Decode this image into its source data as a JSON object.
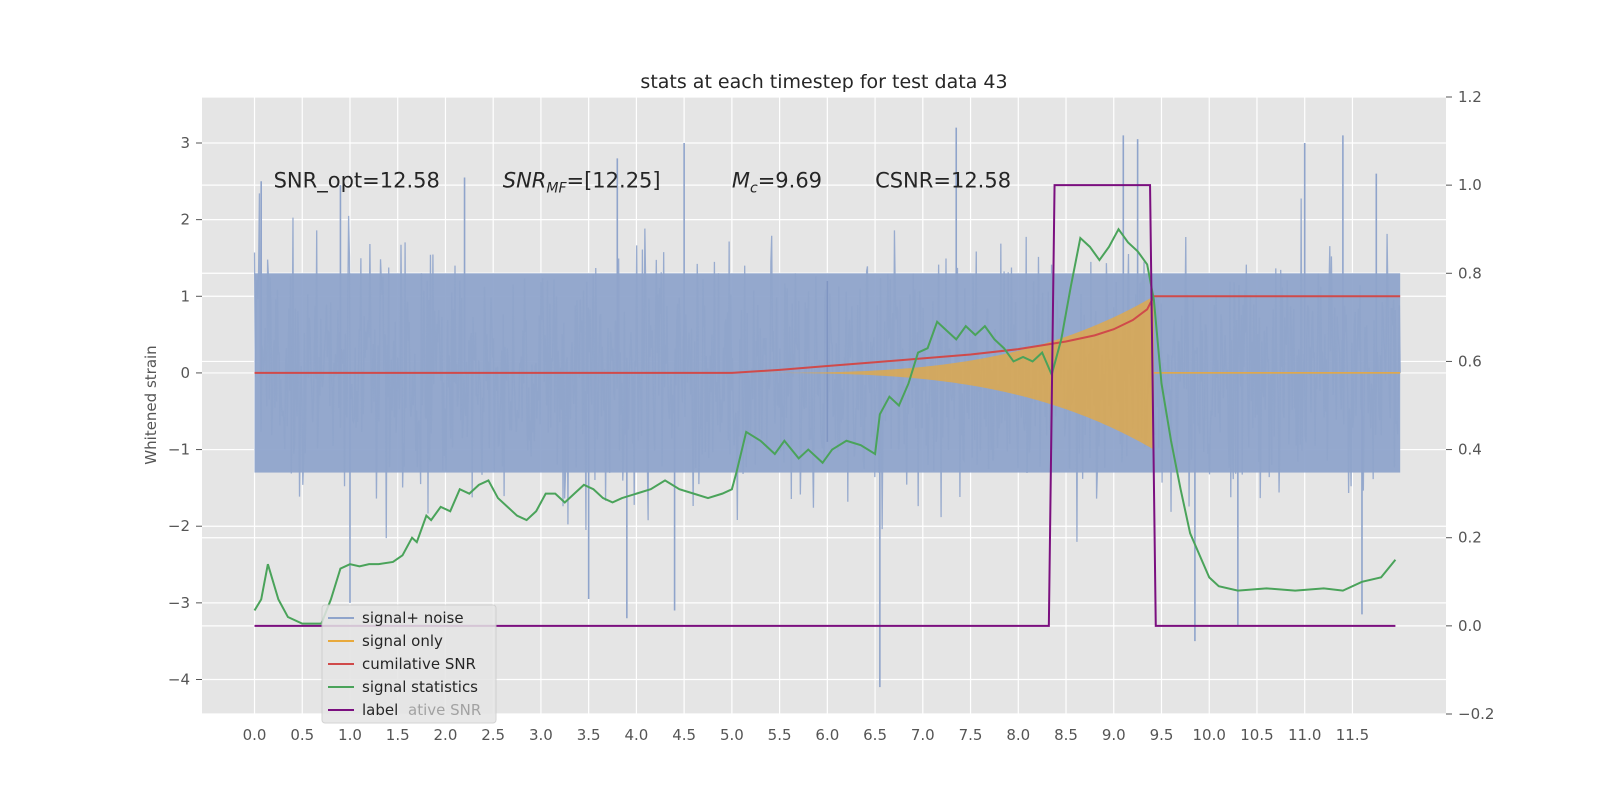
{
  "chart_data": {
    "type": "line",
    "title": "stats at each timestep for test data 43",
    "xlabel": "",
    "ylabel": "Whitened strain",
    "y2label": "",
    "xlim": [
      -0.55,
      12.48
    ],
    "ylim": [
      -4.45,
      3.6
    ],
    "y2lim": [
      -0.2,
      1.2
    ],
    "x_ticks": [
      0.0,
      0.5,
      1.0,
      1.5,
      2.0,
      2.5,
      3.0,
      3.5,
      4.0,
      4.5,
      5.0,
      5.5,
      6.0,
      6.5,
      7.0,
      7.5,
      8.0,
      8.5,
      9.0,
      9.5,
      10.0,
      10.5,
      11.0,
      11.5
    ],
    "x_tick_labels": [
      "0.0",
      "0.5",
      "1.0",
      "1.5",
      "2.0",
      "2.5",
      "3.0",
      "3.5",
      "4.0",
      "4.5",
      "5.0",
      "5.5",
      "6.0",
      "6.5",
      "7.0",
      "7.5",
      "8.0",
      "8.5",
      "9.0",
      "9.5",
      "10.0",
      "10.5",
      "11.0",
      "11.5"
    ],
    "y_ticks": [
      3,
      2,
      1,
      0,
      -1,
      -2,
      -3,
      -4
    ],
    "y_tick_labels": [
      "3",
      "2",
      "1",
      "0",
      "−1",
      "−2",
      "−3",
      "−4"
    ],
    "y2_ticks": [
      1.2,
      1.0,
      0.8,
      0.6,
      0.4,
      0.2,
      0.0,
      -0.2
    ],
    "y2_tick_labels": [
      "1.2",
      "1.0",
      "0.8",
      "0.6",
      "0.4",
      "0.2",
      "0.0",
      "−0.2"
    ],
    "grid": true,
    "legend_position": "lower-left",
    "annotations": [
      {
        "text": "SNR_opt=12.58",
        "x": 0.2,
        "y": 2.55,
        "italic": false
      },
      {
        "text": "SNR",
        "sub": "MF",
        "rest": "=[12.25]",
        "x": 2.6,
        "y": 2.55,
        "italic": true
      },
      {
        "text": "M",
        "sub": "c",
        "rest": "=9.69",
        "x": 5.0,
        "y": 2.55,
        "italic": true
      },
      {
        "text": "CSNR=12.58",
        "x": 6.5,
        "y": 2.55,
        "italic": false
      }
    ],
    "series": [
      {
        "name": "signal+ noise",
        "color": "#8fa4cb",
        "axis": "left",
        "style": "noise",
        "x_range": [
          0.0,
          12.0
        ],
        "band_top": 1.3,
        "band_bottom": -1.3,
        "max": 3.2,
        "min": -4.1
      },
      {
        "name": "signal only",
        "color": "#e8a93c",
        "axis": "left",
        "style": "chirp",
        "x_range": [
          5.0,
          12.0
        ],
        "merger": 9.42,
        "peak_amplitude": 1.0
      },
      {
        "name": "cumilative SNR",
        "color": "#d04a4a",
        "axis": "left",
        "x": [
          0.0,
          5.0,
          5.5,
          6.0,
          6.5,
          7.0,
          7.5,
          8.0,
          8.5,
          8.8,
          9.0,
          9.2,
          9.35,
          9.42,
          12.0
        ],
        "values": [
          0.0,
          0.0,
          0.04,
          0.09,
          0.14,
          0.19,
          0.24,
          0.31,
          0.41,
          0.49,
          0.57,
          0.69,
          0.83,
          1.0,
          1.0
        ]
      },
      {
        "name": "signal statistics",
        "color": "#4aa35a",
        "axis": "right",
        "x": [
          0.0,
          0.07,
          0.14,
          0.25,
          0.35,
          0.5,
          0.7,
          0.8,
          0.9,
          1.0,
          1.1,
          1.2,
          1.3,
          1.45,
          1.55,
          1.65,
          1.7,
          1.8,
          1.85,
          1.95,
          2.05,
          2.15,
          2.25,
          2.35,
          2.45,
          2.55,
          2.65,
          2.75,
          2.85,
          2.95,
          3.05,
          3.15,
          3.25,
          3.35,
          3.45,
          3.55,
          3.65,
          3.75,
          3.85,
          4.0,
          4.15,
          4.3,
          4.45,
          4.6,
          4.75,
          4.9,
          5.0,
          5.05,
          5.15,
          5.3,
          5.45,
          5.55,
          5.7,
          5.8,
          5.95,
          6.05,
          6.2,
          6.35,
          6.5,
          6.55,
          6.65,
          6.75,
          6.85,
          6.95,
          7.05,
          7.15,
          7.25,
          7.35,
          7.45,
          7.55,
          7.65,
          7.75,
          7.85,
          7.95,
          8.05,
          8.15,
          8.25,
          8.35,
          8.45,
          8.55,
          8.65,
          8.75,
          8.85,
          8.95,
          9.05,
          9.15,
          9.25,
          9.35,
          9.42,
          9.5,
          9.6,
          9.7,
          9.8,
          9.9,
          10.0,
          10.1,
          10.3,
          10.6,
          10.9,
          11.2,
          11.4,
          11.6,
          11.8,
          11.95
        ],
        "values": [
          0.035,
          0.06,
          0.14,
          0.06,
          0.02,
          0.005,
          0.005,
          0.06,
          0.13,
          0.14,
          0.135,
          0.14,
          0.14,
          0.145,
          0.16,
          0.2,
          0.19,
          0.25,
          0.24,
          0.27,
          0.26,
          0.31,
          0.3,
          0.32,
          0.33,
          0.29,
          0.27,
          0.25,
          0.24,
          0.26,
          0.3,
          0.3,
          0.28,
          0.3,
          0.32,
          0.31,
          0.29,
          0.28,
          0.29,
          0.3,
          0.31,
          0.33,
          0.31,
          0.3,
          0.29,
          0.3,
          0.31,
          0.35,
          0.44,
          0.42,
          0.39,
          0.42,
          0.38,
          0.4,
          0.37,
          0.4,
          0.42,
          0.41,
          0.39,
          0.48,
          0.52,
          0.5,
          0.55,
          0.62,
          0.63,
          0.69,
          0.67,
          0.65,
          0.68,
          0.66,
          0.68,
          0.65,
          0.63,
          0.6,
          0.61,
          0.6,
          0.62,
          0.57,
          0.65,
          0.77,
          0.88,
          0.86,
          0.83,
          0.86,
          0.9,
          0.87,
          0.85,
          0.82,
          0.74,
          0.55,
          0.42,
          0.31,
          0.21,
          0.16,
          0.11,
          0.09,
          0.08,
          0.085,
          0.08,
          0.085,
          0.08,
          0.1,
          0.11,
          0.15
        ],
        "x_end": 11.95
      },
      {
        "name": "label",
        "color": "#7b0f7f",
        "axis": "right",
        "x": [
          0.0,
          8.32,
          8.38,
          9.38,
          9.44,
          11.95
        ],
        "values": [
          0.0,
          0.0,
          1.0,
          1.0,
          0.0,
          0.0
        ]
      }
    ],
    "legend_ghost_text": "cumilative SNR"
  }
}
